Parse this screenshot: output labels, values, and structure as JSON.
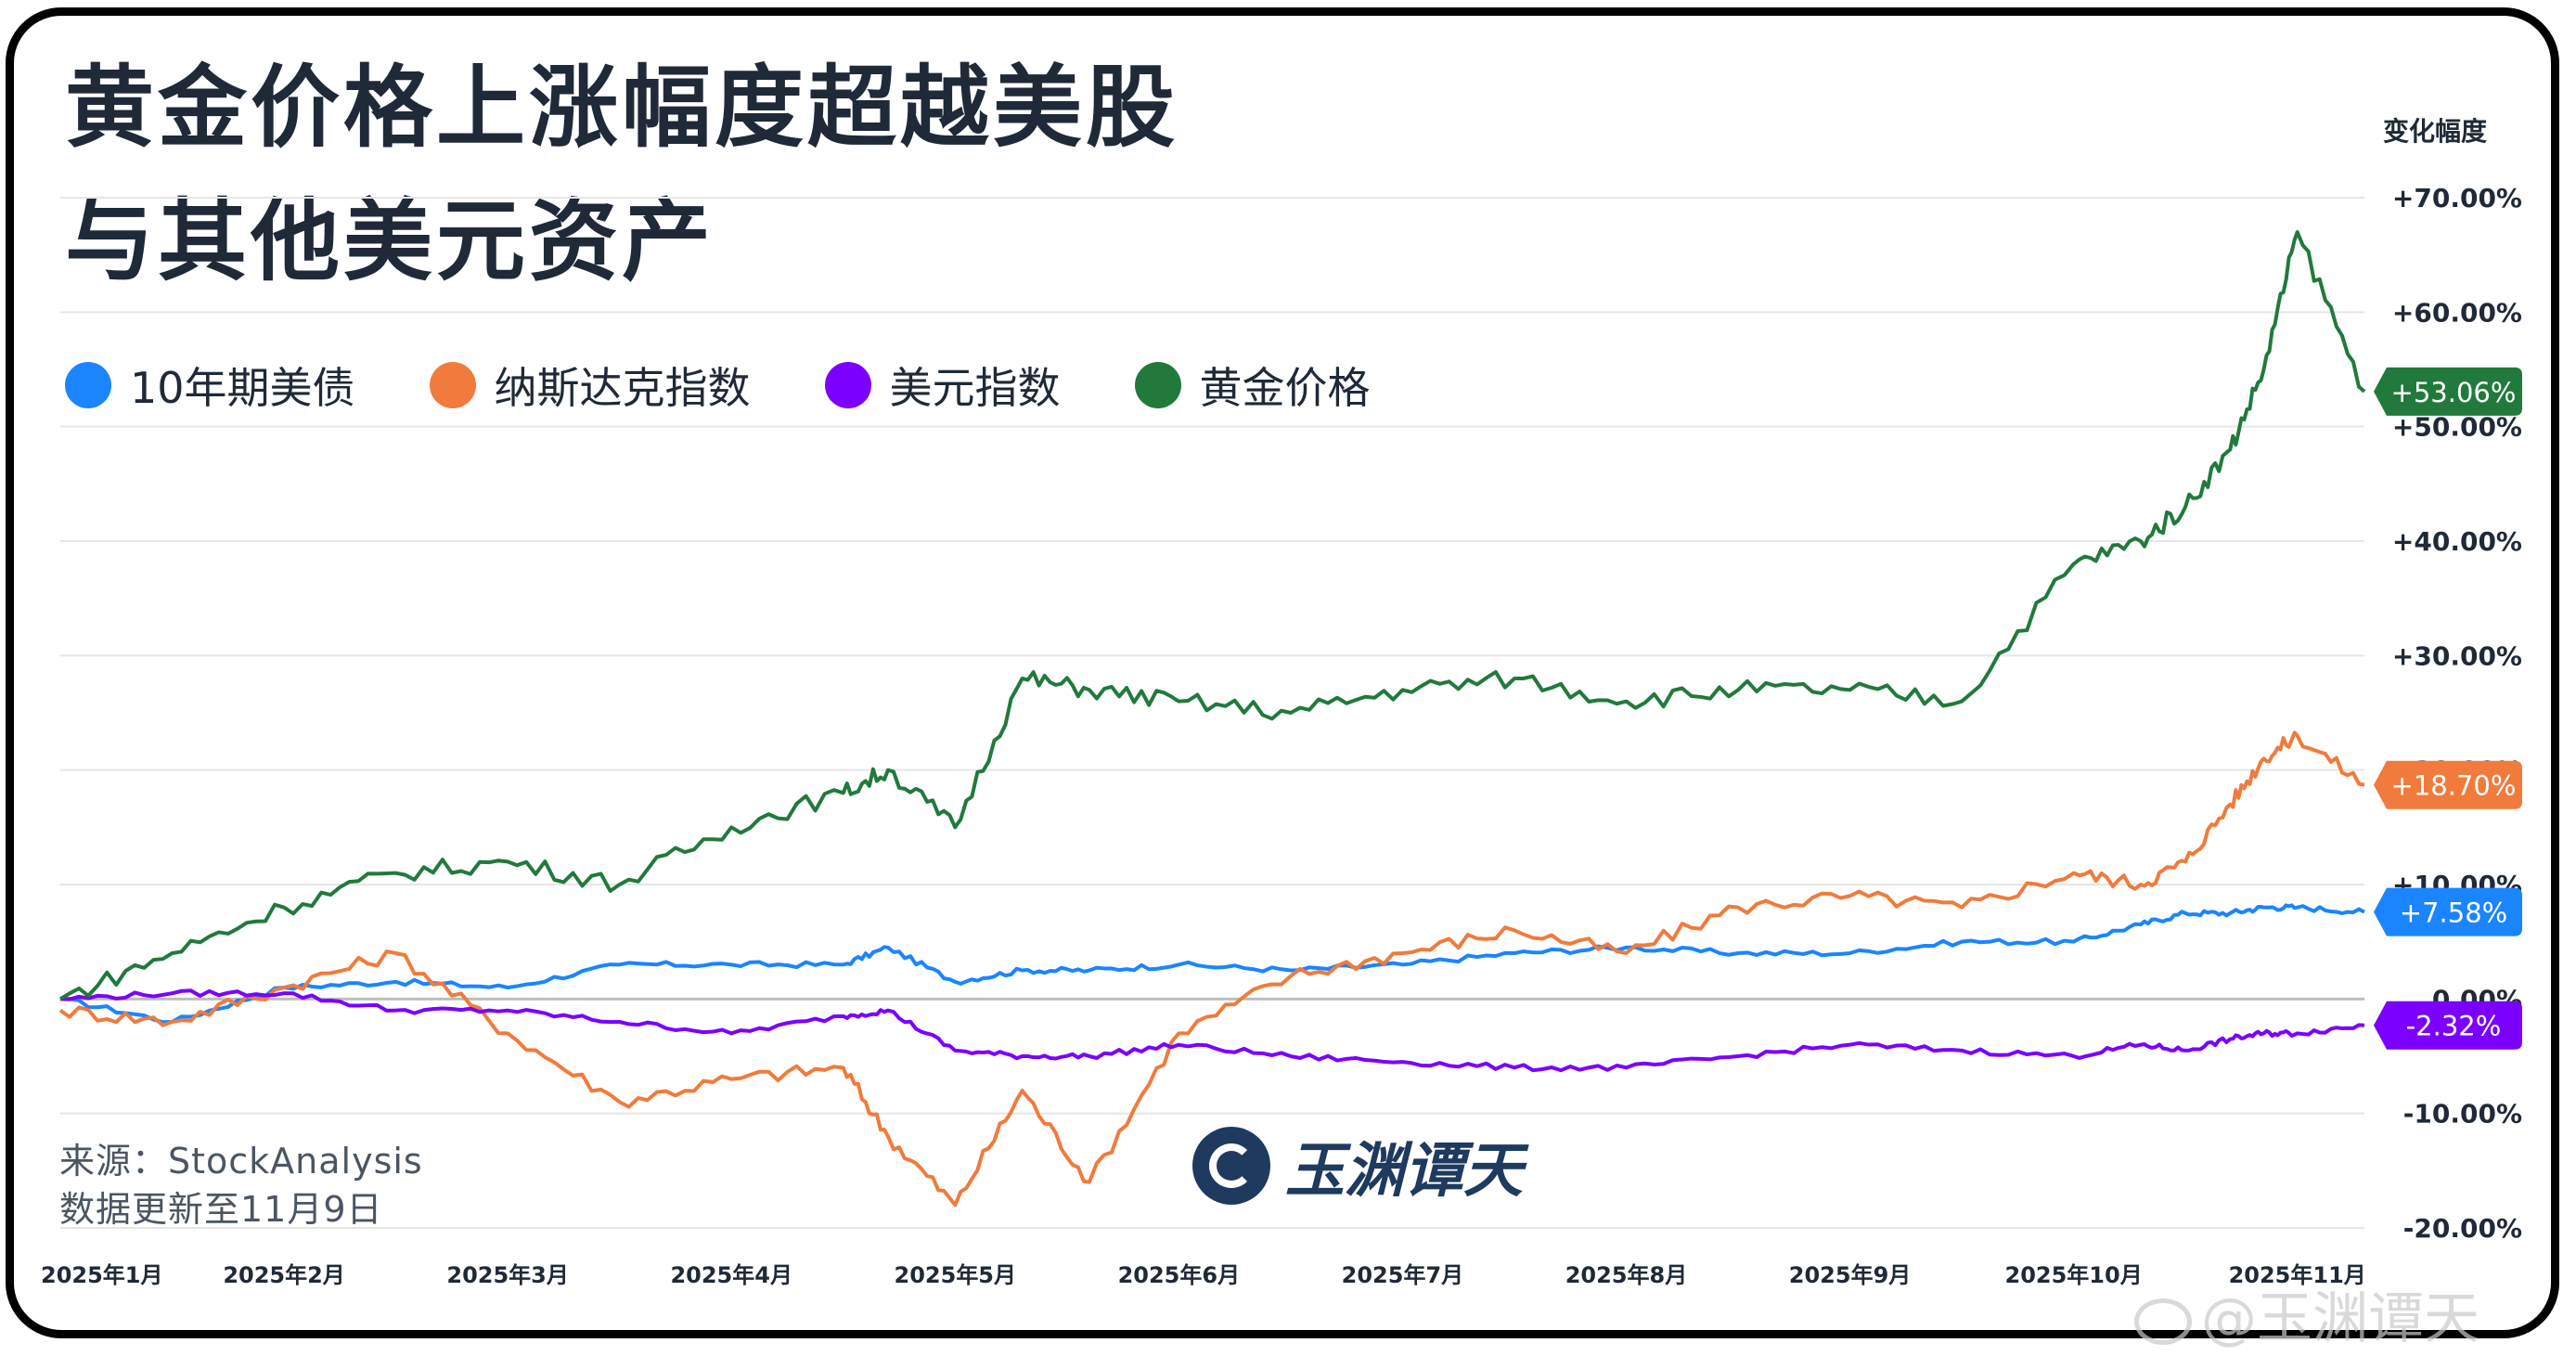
{
  "title_line1": "黄金价格上涨幅度超越美股",
  "title_line2": "与其他美元资产",
  "y_axis_label": "变化幅度",
  "source_line1": "来源：StockAnalysis",
  "source_line2": "数据更新至11月9日",
  "watermark_text": "玉渊谭天",
  "weibo_mark": "@玉渊谭天",
  "chart_data": {
    "type": "line",
    "title": "黄金价格上涨幅度超越美股与其他美元资产",
    "ylabel": "变化幅度",
    "ylim": [
      -20,
      70
    ],
    "yticks": [
      70,
      60,
      50,
      40,
      30,
      20,
      10,
      0,
      -10,
      -20
    ],
    "ytick_labels": [
      "+70.00%",
      "+60.00%",
      "+50.00%",
      "+40.00%",
      "+30.00%",
      "+20.00%",
      "+10.00%",
      "0.00%",
      "-10.00%",
      "-20.00%"
    ],
    "x_months": [
      "2025年1月",
      "2025年2月",
      "2025年3月",
      "2025年4月",
      "2025年5月",
      "2025年6月",
      "2025年7月",
      "2025年8月",
      "2025年9月",
      "2025年10月",
      "2025年11月"
    ],
    "x": [
      0,
      0.5,
      1,
      1.5,
      2,
      2.5,
      3,
      3.5,
      3.7,
      4,
      4.3,
      4.6,
      5,
      5.5,
      6,
      6.5,
      7,
      7.5,
      8,
      8.5,
      9,
      9.3,
      9.5,
      9.7,
      9.85,
      10,
      10.3
    ],
    "series": [
      {
        "name": "10年期美债",
        "color": "#1a85ff",
        "end_label": "+7.58%",
        "values": [
          0,
          -2,
          1,
          1.5,
          1,
          3,
          3,
          3,
          4.5,
          1.5,
          2.5,
          2.5,
          3,
          2.5,
          3,
          4,
          4.5,
          4,
          4,
          5,
          5,
          6.5,
          7.5,
          7.5,
          8,
          8,
          7.6
        ]
      },
      {
        "name": "纳斯达克指数",
        "color": "#f07b3c",
        "end_label": "+18.70%",
        "values": [
          -1,
          -2,
          1,
          4,
          -3,
          -9,
          -7,
          -6,
          -12,
          -18,
          -8,
          -16,
          -3,
          2,
          4,
          6,
          4,
          8,
          9,
          8,
          11,
          10,
          12,
          17,
          21,
          23,
          18.7
        ]
      },
      {
        "name": "美元指数",
        "color": "#7b00ff",
        "end_label": "-2.32%",
        "values": [
          0,
          0.5,
          0.5,
          -1,
          -1,
          -2,
          -3,
          -1.5,
          -1,
          -4.5,
          -5,
          -5,
          -4,
          -5,
          -5.5,
          -6,
          -6,
          -5,
          -4,
          -4.5,
          -5,
          -4,
          -4.5,
          -3.5,
          -3,
          -3,
          -2.3
        ]
      },
      {
        "name": "黄金价格",
        "color": "#217a3c",
        "end_label": "+53.06%",
        "values": [
          0,
          4,
          8,
          11,
          12,
          10,
          15,
          18,
          20,
          15,
          28,
          27,
          26,
          25,
          27,
          28,
          26,
          27,
          27,
          26,
          38,
          40,
          43,
          48,
          55,
          67,
          53.06
        ]
      }
    ]
  }
}
